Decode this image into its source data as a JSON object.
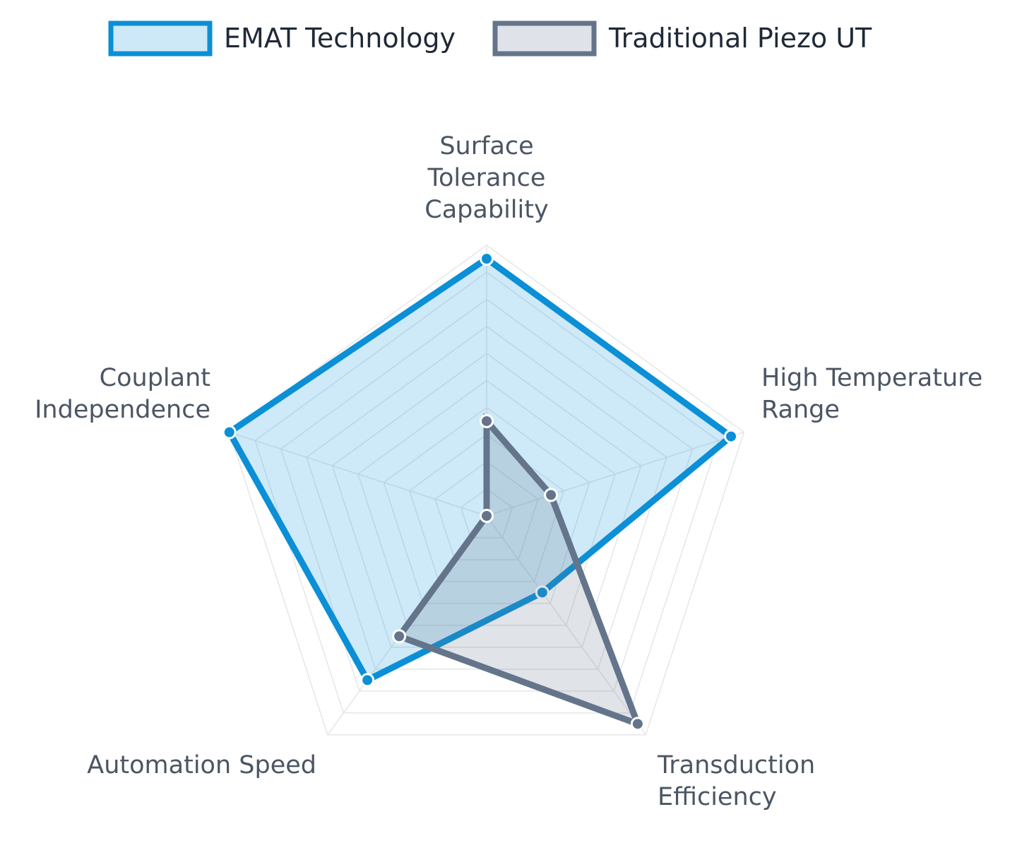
{
  "chart_data": {
    "type": "radar",
    "axes": [
      "Surface Tolerance Capability",
      "High Temperature Range",
      "Transduction Efficiency",
      "Automation Speed",
      "Couplant Independence"
    ],
    "axis_label_lines": [
      [
        "Surface",
        "Tolerance",
        "Capability"
      ],
      [
        "High Temperature",
        "Range"
      ],
      [
        "Transduction",
        "Efficiency"
      ],
      [
        "Automation Speed"
      ],
      [
        "Couplant",
        "Independence"
      ]
    ],
    "rlim": [
      0,
      10
    ],
    "grid_levels": 10,
    "grid": true,
    "legend_position": "top",
    "series": [
      {
        "name": "EMAT Technology",
        "values": [
          9.5,
          9.5,
          3.5,
          7.5,
          10
        ],
        "color": "#0b8fd6",
        "fill": "#cde8f6"
      },
      {
        "name": "Traditional Piezo UT",
        "values": [
          3.5,
          2.5,
          9.5,
          5.5,
          0
        ],
        "color": "#64748b",
        "fill": "#dfe2e8"
      }
    ]
  }
}
